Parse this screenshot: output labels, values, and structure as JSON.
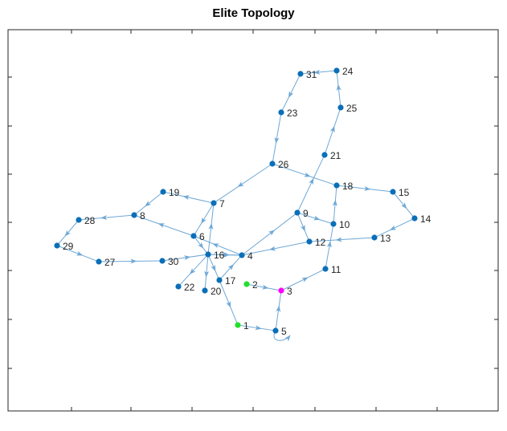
{
  "figure": {
    "title": "Elite Topology"
  },
  "colors": {
    "edge": "#6fa8d6",
    "node": "#0b6fb8",
    "highlight_green": "#22e02a",
    "highlight_magenta": "#ff00ff",
    "axes": "#262626",
    "background": "#ffffff"
  },
  "chart_data": {
    "type": "graph",
    "title": "Elite Topology",
    "directed": true,
    "nodes": [
      {
        "id": "1",
        "label": "1",
        "color": "green"
      },
      {
        "id": "2",
        "label": "2",
        "color": "green"
      },
      {
        "id": "3",
        "label": "3",
        "color": "magenta"
      },
      {
        "id": "4",
        "label": "4"
      },
      {
        "id": "5",
        "label": "5"
      },
      {
        "id": "6",
        "label": "6"
      },
      {
        "id": "7",
        "label": "7"
      },
      {
        "id": "8",
        "label": "8"
      },
      {
        "id": "9",
        "label": "9"
      },
      {
        "id": "10",
        "label": "10"
      },
      {
        "id": "11",
        "label": "11"
      },
      {
        "id": "12",
        "label": "12"
      },
      {
        "id": "13",
        "label": "13"
      },
      {
        "id": "14",
        "label": "14"
      },
      {
        "id": "15",
        "label": "15"
      },
      {
        "id": "16",
        "label": "16"
      },
      {
        "id": "17",
        "label": "17"
      },
      {
        "id": "18",
        "label": "18"
      },
      {
        "id": "19",
        "label": "19"
      },
      {
        "id": "20",
        "label": "20"
      },
      {
        "id": "21",
        "label": "21"
      },
      {
        "id": "22",
        "label": "22"
      },
      {
        "id": "23",
        "label": "23"
      },
      {
        "id": "24",
        "label": "24"
      },
      {
        "id": "25",
        "label": "25"
      },
      {
        "id": "26",
        "label": "26"
      },
      {
        "id": "27",
        "label": "27"
      },
      {
        "id": "28",
        "label": "28"
      },
      {
        "id": "29",
        "label": "29"
      },
      {
        "id": "30",
        "label": "30"
      },
      {
        "id": "31",
        "label": "31"
      }
    ],
    "edges": [
      [
        "1",
        "5"
      ],
      [
        "5",
        "5"
      ],
      [
        "5",
        "3"
      ],
      [
        "2",
        "3"
      ],
      [
        "3",
        "11"
      ],
      [
        "11",
        "10"
      ],
      [
        "10",
        "18"
      ],
      [
        "18",
        "15"
      ],
      [
        "15",
        "14"
      ],
      [
        "14",
        "13"
      ],
      [
        "13",
        "12"
      ],
      [
        "12",
        "4"
      ],
      [
        "4",
        "6"
      ],
      [
        "6",
        "8"
      ],
      [
        "8",
        "28"
      ],
      [
        "28",
        "29"
      ],
      [
        "29",
        "27"
      ],
      [
        "27",
        "30"
      ],
      [
        "30",
        "16"
      ],
      [
        "16",
        "17"
      ],
      [
        "17",
        "1"
      ],
      [
        "16",
        "22"
      ],
      [
        "16",
        "20"
      ],
      [
        "16",
        "7"
      ],
      [
        "7",
        "19"
      ],
      [
        "19",
        "8"
      ],
      [
        "7",
        "6"
      ],
      [
        "26",
        "7"
      ],
      [
        "26",
        "18"
      ],
      [
        "23",
        "26"
      ],
      [
        "31",
        "23"
      ],
      [
        "24",
        "31"
      ],
      [
        "25",
        "24"
      ],
      [
        "21",
        "25"
      ],
      [
        "9",
        "21"
      ],
      [
        "4",
        "9"
      ],
      [
        "9",
        "10"
      ],
      [
        "9",
        "12"
      ],
      [
        "4",
        "16"
      ],
      [
        "6",
        "16"
      ],
      [
        "17",
        "4"
      ],
      [
        "16",
        "4"
      ]
    ]
  }
}
